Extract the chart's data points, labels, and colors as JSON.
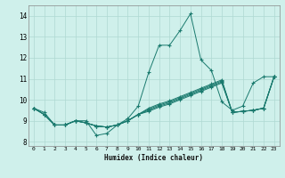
{
  "xlabel": "Humidex (Indice chaleur)",
  "xlim": [
    -0.5,
    23.5
  ],
  "ylim": [
    7.8,
    14.5
  ],
  "xticks": [
    0,
    1,
    2,
    3,
    4,
    5,
    6,
    7,
    8,
    9,
    10,
    11,
    12,
    13,
    14,
    15,
    16,
    17,
    18,
    19,
    20,
    21,
    22,
    23
  ],
  "yticks": [
    8,
    9,
    10,
    11,
    12,
    13,
    14
  ],
  "bg_color": "#cff0eb",
  "line_color": "#1a7a6e",
  "grid_color": "#aed8d2",
  "lines": [
    [
      9.6,
      9.4,
      8.8,
      8.8,
      9.0,
      9.0,
      8.3,
      8.4,
      8.8,
      9.1,
      9.7,
      11.3,
      12.6,
      12.6,
      13.3,
      14.1,
      11.9,
      11.4,
      9.9,
      9.5,
      9.7,
      10.8,
      11.1,
      11.1
    ],
    [
      9.6,
      9.3,
      8.8,
      8.8,
      9.0,
      8.9,
      8.75,
      8.7,
      8.8,
      9.0,
      9.3,
      9.6,
      9.8,
      9.95,
      10.15,
      10.35,
      10.55,
      10.75,
      10.95,
      9.4,
      9.45,
      9.5,
      9.6,
      11.1
    ],
    [
      9.6,
      9.3,
      8.8,
      8.8,
      9.0,
      8.9,
      8.75,
      8.7,
      8.8,
      9.0,
      9.3,
      9.55,
      9.75,
      9.9,
      10.1,
      10.3,
      10.5,
      10.7,
      10.9,
      9.4,
      9.45,
      9.5,
      9.6,
      11.1
    ],
    [
      9.6,
      9.3,
      8.8,
      8.8,
      9.0,
      8.9,
      8.75,
      8.7,
      8.8,
      9.0,
      9.3,
      9.5,
      9.7,
      9.85,
      10.05,
      10.25,
      10.45,
      10.65,
      10.85,
      9.4,
      9.45,
      9.5,
      9.6,
      11.1
    ],
    [
      9.6,
      9.3,
      8.8,
      8.8,
      9.0,
      8.9,
      8.75,
      8.7,
      8.8,
      9.0,
      9.3,
      9.45,
      9.65,
      9.8,
      10.0,
      10.2,
      10.4,
      10.6,
      10.8,
      9.4,
      9.45,
      9.5,
      9.6,
      11.1
    ]
  ]
}
